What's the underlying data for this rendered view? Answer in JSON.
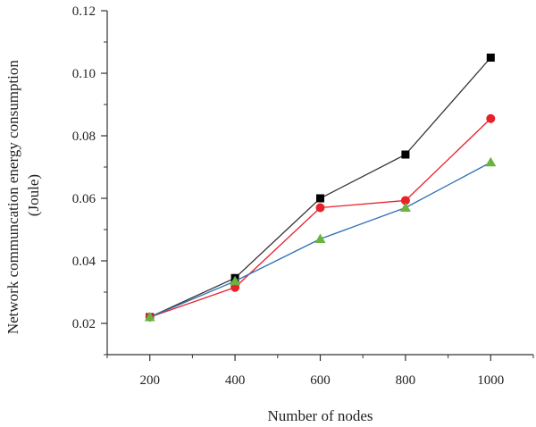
{
  "chart_data": {
    "type": "line",
    "xlabel": "Number of nodes",
    "ylabel": "Network communcation energy consumption (Joule)",
    "ylabel_lines": [
      "Network communcation energy consumption",
      "(Joule)"
    ],
    "x": [
      200,
      400,
      600,
      800,
      1000
    ],
    "xlim": [
      100,
      1100
    ],
    "ylim": [
      0.01,
      0.12
    ],
    "xticks": [
      200,
      400,
      600,
      800,
      1000
    ],
    "xtick_labels": [
      "200",
      "400",
      "600",
      "800",
      "1000"
    ],
    "yticks": [
      0.02,
      0.04,
      0.06,
      0.08,
      0.1,
      0.12
    ],
    "ytick_labels": [
      "0.02",
      "0.04",
      "0.06",
      "0.08",
      "0.10",
      "0.12"
    ],
    "grid": false,
    "legend": "none",
    "series": [
      {
        "marker": "square",
        "color": "#000000",
        "line_color": "#333333",
        "values": [
          0.022,
          0.0345,
          0.06,
          0.074,
          0.105
        ]
      },
      {
        "marker": "circle",
        "color": "#e8202a",
        "line_color": "#e8202a",
        "values": [
          0.022,
          0.0315,
          0.057,
          0.0593,
          0.0855
        ]
      },
      {
        "marker": "triangle",
        "color": "#6ab43e",
        "line_color": "#2f6fb5",
        "values": [
          0.022,
          0.0335,
          0.047,
          0.057,
          0.0715
        ]
      }
    ]
  }
}
